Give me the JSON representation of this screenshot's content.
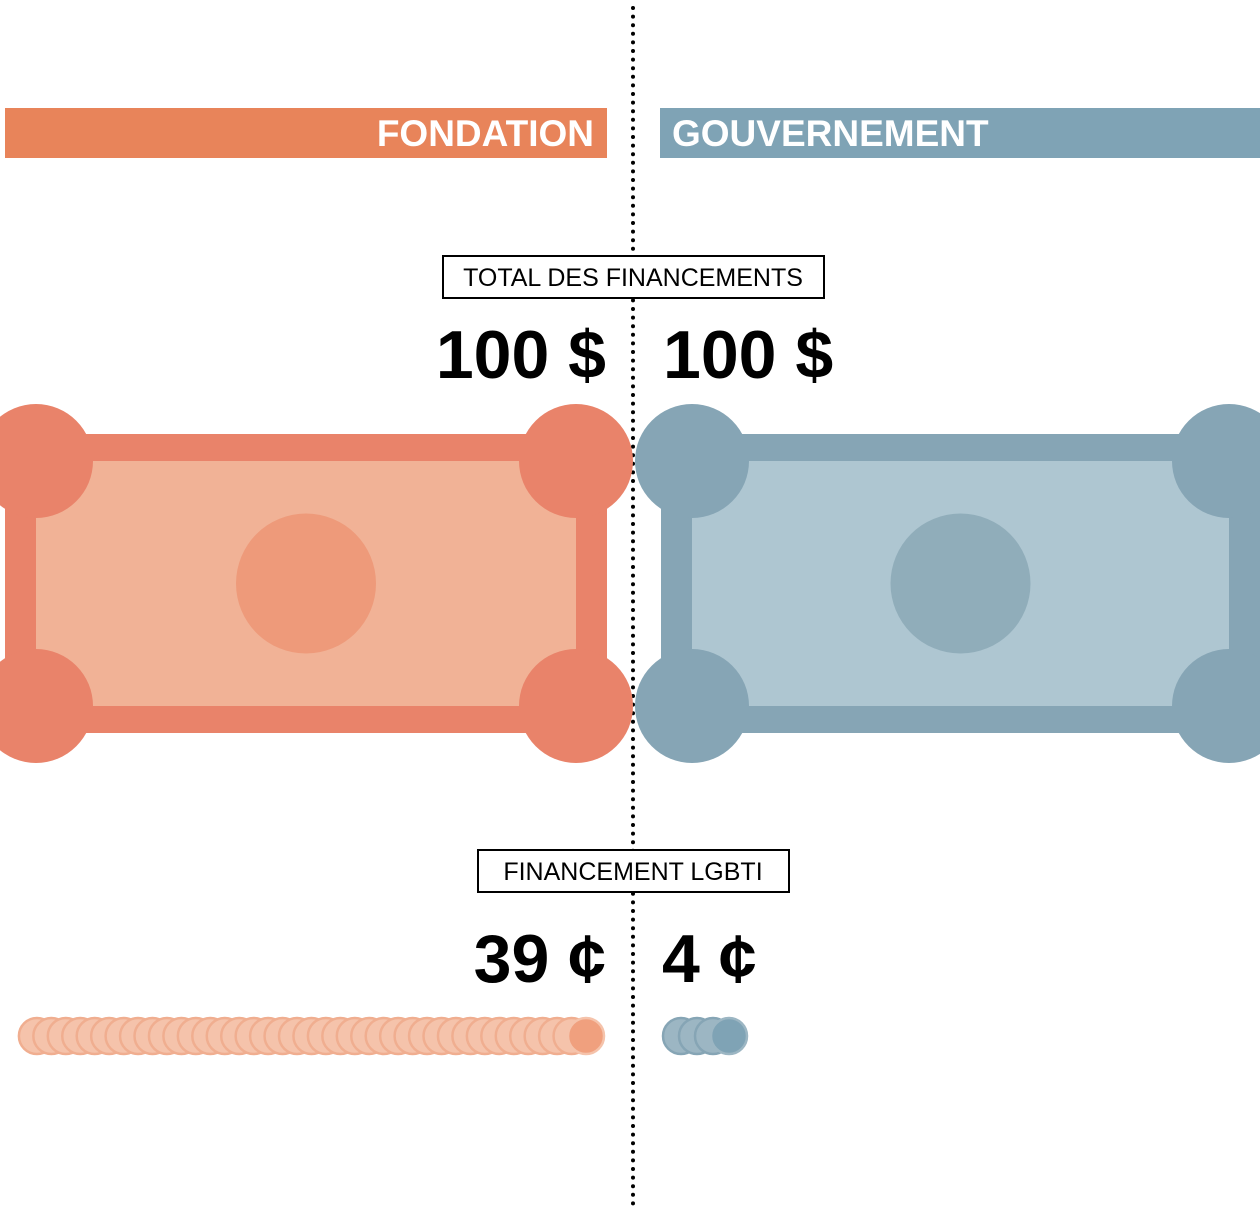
{
  "total_heading": "TOTAL DES FINANCEMENTS",
  "lgbti_heading": "FINANCEMENT LGBTI",
  "sides": [
    {
      "name": "FONDATION",
      "color": "#e8845a",
      "total": {
        "value": 100,
        "label": "100 $"
      },
      "lgbti": {
        "value": 39,
        "label": "39 ¢"
      }
    },
    {
      "name": "GOUVERNEMENT",
      "color": "#7fa3b5",
      "total": {
        "value": 100,
        "label": "100 $"
      },
      "lgbti": {
        "value": 4,
        "label": "4 ¢"
      }
    }
  ]
}
